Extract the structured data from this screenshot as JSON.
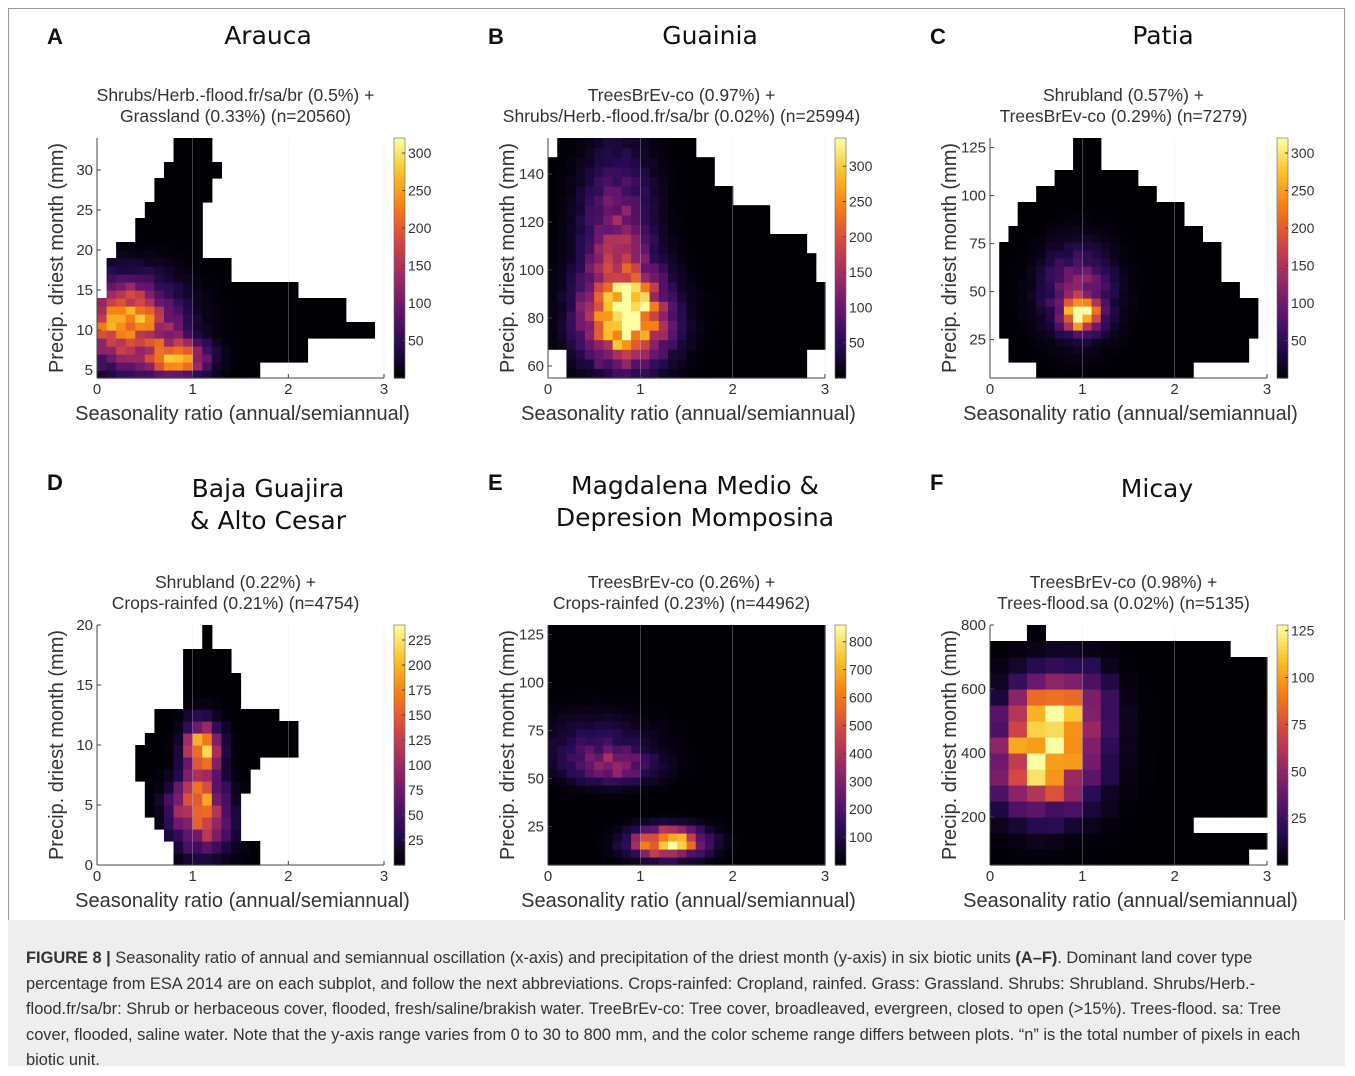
{
  "figure": {
    "caption_label": "FIGURE 8 |",
    "caption_text": " Seasonality ratio of annual and semiannual oscillation (x-axis) and precipitation of the driest month (y-axis) in six biotic units ",
    "caption_bold": "(A–F)",
    "caption_rest": ". Dominant land cover type percentage from ESA 2014 are on each subplot, and follow the next abbreviations. Crops-rainfed: Cropland, rainfed. Grass: Grassland. Shrubs: Shrubland. Shrubs/Herb.-flood.fr/sa/br: Shrub or herbaceous cover, flooded, fresh/saline/brakish water. TreeBrEv-co: Tree cover, broadleaved, evergreen, closed to open (>15%). Trees-flood. sa: Tree cover, flooded, saline water. Note that the y-axis range varies from 0 to 30 to 800 mm, and the color scheme range differs between plots. “n” is the total number of pixels in each biotic unit."
  },
  "colors": {
    "colormap": "inferno",
    "empty_cell": "#ffffff",
    "frame": "#9a9a9a",
    "caption_bg": "#eeeeee"
  },
  "chart_data": [
    {
      "type": "heatmap",
      "panel": "A",
      "title_lines": [
        "Arauca"
      ],
      "subtitle_lines": [
        "Shrubs/Herb.-flood.fr/sa/br (0.5%) +",
        "Grassland (0.33%)  (n=20560)"
      ],
      "xlabel": "Seasonality ratio (annual/semiannual)",
      "ylabel": "Precip. driest month (mm)",
      "xlim": [
        0,
        3
      ],
      "ylim": [
        4,
        34
      ],
      "xticks": [
        0,
        1,
        2,
        3
      ],
      "yticks": [
        5,
        10,
        15,
        20,
        25,
        30
      ],
      "colorbar_ticks": [
        50,
        100,
        150,
        200,
        250,
        300
      ],
      "colorbar_max": 320,
      "nx": 30,
      "ny": 30,
      "hot_spots": [
        {
          "x": 0.3,
          "y": 11,
          "value": 250,
          "sx": 0.35,
          "sy": 3.5
        },
        {
          "x": 0.85,
          "y": 6.5,
          "value": 230,
          "sx": 0.2,
          "sy": 1.5
        }
      ],
      "extent": [
        {
          "y": 5,
          "x": [
            0,
            1.7
          ]
        },
        {
          "y": 7.5,
          "x": [
            0,
            2.2
          ]
        },
        {
          "y": 10,
          "x": [
            0,
            2.9
          ]
        },
        {
          "y": 12.5,
          "x": [
            0,
            2.6
          ]
        },
        {
          "y": 15,
          "x": [
            0.1,
            2.1
          ]
        },
        {
          "y": 17.5,
          "x": [
            0.1,
            1.4
          ]
        },
        {
          "y": 20,
          "x": [
            0.25,
            1.15
          ]
        },
        {
          "y": 22.5,
          "x": [
            0.4,
            1.1
          ]
        },
        {
          "y": 25,
          "x": [
            0.55,
            1.15
          ]
        },
        {
          "y": 27.5,
          "x": [
            0.65,
            1.2
          ]
        },
        {
          "y": 30,
          "x": [
            0.75,
            1.25
          ]
        },
        {
          "y": 32.5,
          "x": [
            0.85,
            1.2
          ]
        }
      ]
    },
    {
      "type": "heatmap",
      "panel": "B",
      "title_lines": [
        "Guainia"
      ],
      "subtitle_lines": [
        "TreesBrEv-co (0.97%) +",
        "Shrubs/Herb.-flood.fr/sa/br (0.02%)  (n=25994)"
      ],
      "xlabel": "Seasonality ratio (annual/semiannual)",
      "ylabel": "Precip. driest month (mm)",
      "xlim": [
        0,
        3
      ],
      "ylim": [
        55,
        155
      ],
      "xticks": [
        0,
        1,
        2,
        3
      ],
      "yticks": [
        60,
        80,
        100,
        120,
        140
      ],
      "colorbar_ticks": [
        50,
        100,
        150,
        200,
        250,
        300
      ],
      "colorbar_max": 340,
      "nx": 30,
      "ny": 25,
      "hot_spots": [
        {
          "x": 0.85,
          "y": 80,
          "value": 330,
          "sx": 0.3,
          "sy": 12
        },
        {
          "x": 0.75,
          "y": 110,
          "value": 140,
          "sx": 0.25,
          "sy": 25
        }
      ],
      "extent": [
        {
          "y": 60,
          "x": [
            0.2,
            2.8
          ]
        },
        {
          "y": 70,
          "x": [
            0,
            3
          ]
        },
        {
          "y": 80,
          "x": [
            0,
            3
          ]
        },
        {
          "y": 90,
          "x": [
            0,
            3
          ]
        },
        {
          "y": 100,
          "x": [
            0,
            2.9
          ]
        },
        {
          "y": 110,
          "x": [
            0,
            2.8
          ]
        },
        {
          "y": 120,
          "x": [
            0,
            2.4
          ]
        },
        {
          "y": 130,
          "x": [
            0,
            2.0
          ]
        },
        {
          "y": 140,
          "x": [
            0.05,
            1.8
          ]
        },
        {
          "y": 150,
          "x": [
            0.1,
            1.6
          ]
        }
      ]
    },
    {
      "type": "heatmap",
      "panel": "C",
      "title_lines": [
        "Patia"
      ],
      "subtitle_lines": [
        "Shrubland (0.57%) +",
        "TreesBrEv-co (0.29%)  (n=7279)"
      ],
      "xlabel": "Seasonality ratio (annual/semiannual)",
      "ylabel": "Precip. driest month (mm)",
      "xlim": [
        0,
        3
      ],
      "ylim": [
        5,
        130
      ],
      "xticks": [
        0,
        1,
        2,
        3
      ],
      "yticks": [
        25,
        50,
        75,
        100,
        125
      ],
      "colorbar_ticks": [
        50,
        100,
        150,
        200,
        250,
        300
      ],
      "colorbar_max": 320,
      "nx": 30,
      "ny": 30,
      "hot_spots": [
        {
          "x": 1.0,
          "y": 38,
          "value": 320,
          "sx": 0.12,
          "sy": 5
        },
        {
          "x": 0.95,
          "y": 50,
          "value": 120,
          "sx": 0.25,
          "sy": 15
        }
      ],
      "extent": [
        {
          "y": 10,
          "x": [
            0.5,
            2.2
          ]
        },
        {
          "y": 20,
          "x": [
            0.2,
            2.8
          ]
        },
        {
          "y": 30,
          "x": [
            0.1,
            2.9
          ]
        },
        {
          "y": 40,
          "x": [
            0.1,
            2.9
          ]
        },
        {
          "y": 50,
          "x": [
            0.1,
            2.7
          ]
        },
        {
          "y": 60,
          "x": [
            0.1,
            2.5
          ]
        },
        {
          "y": 70,
          "x": [
            0.1,
            2.5
          ]
        },
        {
          "y": 80,
          "x": [
            0.2,
            2.3
          ]
        },
        {
          "y": 90,
          "x": [
            0.3,
            2.1
          ]
        },
        {
          "y": 100,
          "x": [
            0.5,
            1.8
          ]
        },
        {
          "y": 110,
          "x": [
            0.7,
            1.6
          ]
        },
        {
          "y": 120,
          "x": [
            0.9,
            1.2
          ]
        }
      ]
    },
    {
      "type": "heatmap",
      "panel": "D",
      "title_lines": [
        "Baja Guajira",
        "& Alto Cesar"
      ],
      "subtitle_lines": [
        "Shrubland (0.22%) +",
        "Crops-rainfed (0.21%)  (n=4754)"
      ],
      "xlabel": "Seasonality ratio (annual/semiannual)",
      "ylabel": "Precip. driest month (mm)",
      "xlim": [
        0,
        3
      ],
      "ylim": [
        0,
        20
      ],
      "xticks": [
        0,
        1,
        2,
        3
      ],
      "yticks": [
        0,
        5,
        10,
        15,
        20
      ],
      "colorbar_ticks": [
        25,
        50,
        75,
        100,
        125,
        150,
        175,
        200,
        225
      ],
      "colorbar_max": 240,
      "nx": 30,
      "ny": 20,
      "hot_spots": [
        {
          "x": 1.1,
          "y": 9.5,
          "value": 230,
          "sx": 0.12,
          "sy": 1.5
        },
        {
          "x": 1.05,
          "y": 5.5,
          "value": 150,
          "sx": 0.18,
          "sy": 1.2
        },
        {
          "x": 1.1,
          "y": 3,
          "value": 100,
          "sx": 0.2,
          "sy": 1.5
        }
      ],
      "extent": [
        {
          "y": 0.5,
          "x": [
            0.8,
            1.7
          ]
        },
        {
          "y": 1.5,
          "x": [
            0.8,
            1.7
          ]
        },
        {
          "y": 2.5,
          "x": [
            0.7,
            1.5
          ]
        },
        {
          "y": 3.5,
          "x": [
            0.6,
            1.5
          ]
        },
        {
          "y": 4.5,
          "x": [
            0.5,
            1.5
          ]
        },
        {
          "y": 5.5,
          "x": [
            0.5,
            1.5
          ]
        },
        {
          "y": 6.5,
          "x": [
            0.5,
            1.6
          ]
        },
        {
          "y": 7.5,
          "x": [
            0.4,
            1.6
          ]
        },
        {
          "y": 8.5,
          "x": [
            0.4,
            1.7
          ]
        },
        {
          "y": 9.5,
          "x": [
            0.4,
            2.1
          ]
        },
        {
          "y": 10.5,
          "x": [
            0.5,
            2.1
          ]
        },
        {
          "y": 11.5,
          "x": [
            0.6,
            2.1
          ]
        },
        {
          "y": 12.5,
          "x": [
            0.6,
            1.9
          ]
        },
        {
          "y": 13.5,
          "x": [
            0.9,
            1.5
          ]
        },
        {
          "y": 14.5,
          "x": [
            0.9,
            1.5
          ]
        },
        {
          "y": 15.5,
          "x": [
            0.9,
            1.5
          ]
        },
        {
          "y": 16.5,
          "x": [
            0.9,
            1.4
          ]
        },
        {
          "y": 17.5,
          "x": [
            0.9,
            1.4
          ]
        },
        {
          "y": 18.5,
          "x": [
            1.1,
            1.2
          ]
        },
        {
          "y": 19.5,
          "x": [
            1.1,
            1.2
          ]
        }
      ]
    },
    {
      "type": "heatmap",
      "panel": "E",
      "title_lines": [
        "Magdalena Medio &",
        "Depresion Momposina"
      ],
      "subtitle_lines": [
        "TreesBrEv-co (0.26%) +",
        "Crops-rainfed (0.23%)  (n=44962)"
      ],
      "xlabel": "Seasonality ratio (annual/semiannual)",
      "ylabel": "Precip. driest month (mm)",
      "xlim": [
        0,
        3
      ],
      "ylim": [
        5,
        130
      ],
      "xticks": [
        0,
        1,
        2,
        3
      ],
      "yticks": [
        25,
        50,
        75,
        100,
        125
      ],
      "colorbar_ticks": [
        100,
        200,
        300,
        400,
        500,
        600,
        700,
        800
      ],
      "colorbar_max": 860,
      "nx": 30,
      "ny": 30,
      "hot_spots": [
        {
          "x": 1.3,
          "y": 17,
          "value": 860,
          "sx": 0.25,
          "sy": 5
        },
        {
          "x": 0.7,
          "y": 57,
          "value": 320,
          "sx": 0.3,
          "sy": 6
        },
        {
          "x": 0.5,
          "y": 70,
          "value": 120,
          "sx": 0.4,
          "sy": 10
        }
      ],
      "extent": [
        {
          "y": 10,
          "x": [
            0,
            3
          ]
        },
        {
          "y": 20,
          "x": [
            0,
            3
          ]
        },
        {
          "y": 30,
          "x": [
            0,
            3
          ]
        },
        {
          "y": 40,
          "x": [
            0,
            3
          ]
        },
        {
          "y": 50,
          "x": [
            0,
            3
          ]
        },
        {
          "y": 60,
          "x": [
            0,
            3
          ]
        },
        {
          "y": 70,
          "x": [
            0,
            3
          ]
        },
        {
          "y": 80,
          "x": [
            0,
            3
          ]
        },
        {
          "y": 90,
          "x": [
            0,
            3
          ]
        }
      ]
    },
    {
      "type": "heatmap",
      "panel": "F",
      "title_lines": [
        "Micay"
      ],
      "subtitle_lines": [
        "TreesBrEv-co (0.98%) +",
        "Trees-flood.sa (0.02%)  (n=5135)"
      ],
      "xlabel": "Seasonality ratio (annual/semiannual)",
      "ylabel": "Precip. driest month (mm)",
      "xlim": [
        0,
        3
      ],
      "ylim": [
        50,
        800
      ],
      "xticks": [
        0,
        1,
        2,
        3
      ],
      "yticks": [
        200,
        400,
        600,
        800
      ],
      "colorbar_ticks": [
        25,
        50,
        75,
        100,
        125
      ],
      "colorbar_max": 128,
      "nx": 15,
      "ny": 15,
      "hot_spots": [
        {
          "x": 0.6,
          "y": 400,
          "value": 125,
          "sx": 0.35,
          "sy": 110
        },
        {
          "x": 0.8,
          "y": 560,
          "value": 60,
          "sx": 0.3,
          "sy": 80
        }
      ],
      "extent": [
        {
          "y": 75,
          "x": [
            0.1,
            2.9
          ]
        },
        {
          "y": 125,
          "x": [
            0.1,
            3
          ]
        },
        {
          "y": 175,
          "x": [
            0,
            2.2
          ]
        },
        {
          "y": 250,
          "x": [
            0,
            3
          ]
        },
        {
          "y": 350,
          "x": [
            0,
            3
          ]
        },
        {
          "y": 450,
          "x": [
            0,
            3
          ]
        },
        {
          "y": 550,
          "x": [
            0,
            3
          ]
        },
        {
          "y": 650,
          "x": [
            0,
            3
          ]
        },
        {
          "y": 725,
          "x": [
            0,
            2.6
          ]
        },
        {
          "y": 775,
          "x": [
            0.4,
            0.6
          ]
        }
      ]
    }
  ]
}
